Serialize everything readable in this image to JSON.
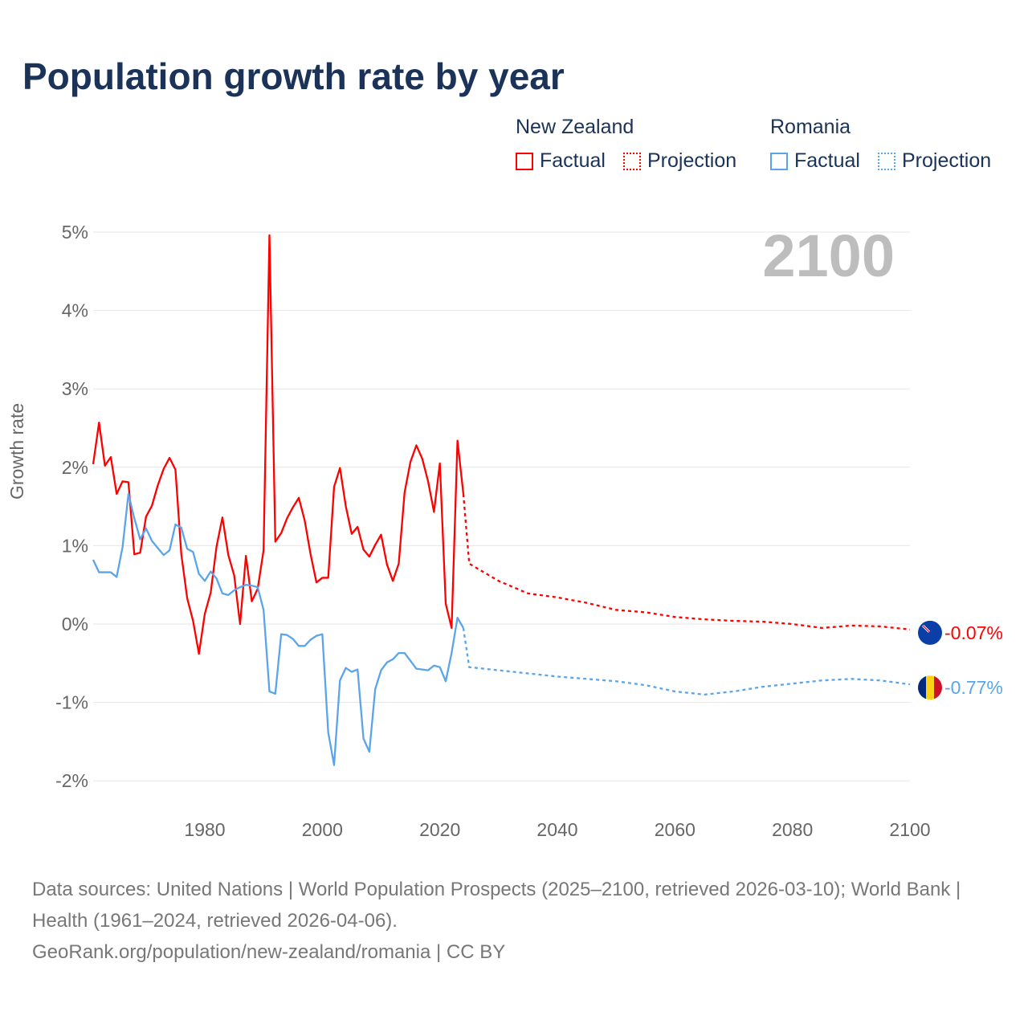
{
  "title": "Population growth rate by year",
  "legend": {
    "groups": [
      {
        "name": "New Zealand",
        "factual": "Factual",
        "projection": "Projection",
        "color": "#ff0000"
      },
      {
        "name": "Romania",
        "factual": "Factual",
        "projection": "Projection",
        "color": "#5aa5ea"
      }
    ]
  },
  "current_year": "2100",
  "footer": {
    "sources": "Data sources: United Nations | World Population Prospects (2025–2100, retrieved 2026-03-10); World Bank | Health (1961–2024, retrieved 2026-04-06).",
    "link": "GeoRank.org/population/new-zealand/romania | CC BY"
  },
  "chart_data": {
    "type": "line",
    "title": "Population growth rate by year",
    "xlabel": "",
    "ylabel": "Growth rate",
    "xlim": [
      1961,
      2100
    ],
    "ylim": [
      -2.3,
      5.2
    ],
    "x_ticks": [
      1980,
      2000,
      2020,
      2040,
      2060,
      2080,
      2100
    ],
    "y_ticks": [
      -2,
      -1,
      0,
      1,
      2,
      3,
      4,
      5
    ],
    "y_tick_labels": [
      "-2%",
      "-1%",
      "0%",
      "1%",
      "2%",
      "3%",
      "4%",
      "5%"
    ],
    "grid": true,
    "legend_position": "top-right",
    "series": [
      {
        "name": "New Zealand",
        "color": "#ff0000",
        "end_label": "-0.07%",
        "flag": "new-zealand",
        "factual": {
          "x_start": 1961,
          "values": [
            2.04,
            2.57,
            2.02,
            2.13,
            1.66,
            1.82,
            1.81,
            0.89,
            0.91,
            1.37,
            1.51,
            1.77,
            1.98,
            2.12,
            1.97,
            0.89,
            0.33,
            0.04,
            -0.38,
            0.13,
            0.4,
            0.99,
            1.36,
            0.88,
            0.62,
            0.0,
            0.87,
            0.29,
            0.45,
            0.94,
            4.96,
            1.05,
            1.16,
            1.35,
            1.49,
            1.61,
            1.32,
            0.89,
            0.53,
            0.59,
            0.59,
            1.75,
            1.99,
            1.5,
            1.15,
            1.24,
            0.95,
            0.86,
            1.01,
            1.14,
            0.76,
            0.55,
            0.77,
            1.68,
            2.07,
            2.28,
            2.11,
            1.82,
            1.43,
            2.05,
            0.26,
            -0.05,
            2.34,
            1.66
          ]
        },
        "projection": {
          "x": [
            2024,
            2025,
            2030,
            2035,
            2040,
            2045,
            2050,
            2055,
            2060,
            2065,
            2070,
            2075,
            2080,
            2085,
            2090,
            2095,
            2100
          ],
          "values": [
            1.66,
            0.77,
            0.55,
            0.39,
            0.34,
            0.27,
            0.18,
            0.15,
            0.09,
            0.06,
            0.04,
            0.03,
            0.0,
            -0.05,
            -0.02,
            -0.03,
            -0.07
          ]
        }
      },
      {
        "name": "Romania",
        "color": "#5aa5ea",
        "end_label": "-0.77%",
        "flag": "romania",
        "factual": {
          "x_start": 1961,
          "values": [
            0.82,
            0.66,
            0.66,
            0.66,
            0.6,
            0.98,
            1.66,
            1.35,
            1.08,
            1.22,
            1.06,
            0.97,
            0.88,
            0.94,
            1.27,
            1.23,
            0.96,
            0.92,
            0.64,
            0.55,
            0.67,
            0.58,
            0.39,
            0.37,
            0.43,
            0.47,
            0.5,
            0.49,
            0.47,
            0.18,
            -0.86,
            -0.89,
            -0.13,
            -0.14,
            -0.19,
            -0.28,
            -0.28,
            -0.2,
            -0.15,
            -0.13,
            -1.38,
            -1.8,
            -0.72,
            -0.56,
            -0.61,
            -0.58,
            -1.46,
            -1.63,
            -0.83,
            -0.59,
            -0.49,
            -0.45,
            -0.37,
            -0.37,
            -0.47,
            -0.57,
            -0.58,
            -0.59,
            -0.53,
            -0.55,
            -0.73,
            -0.37,
            0.08,
            -0.05
          ]
        },
        "projection": {
          "x": [
            2024,
            2025,
            2030,
            2035,
            2040,
            2045,
            2050,
            2055,
            2060,
            2065,
            2070,
            2075,
            2080,
            2085,
            2090,
            2095,
            2100
          ],
          "values": [
            -0.05,
            -0.55,
            -0.59,
            -0.63,
            -0.67,
            -0.7,
            -0.73,
            -0.78,
            -0.86,
            -0.9,
            -0.86,
            -0.8,
            -0.76,
            -0.72,
            -0.7,
            -0.72,
            -0.77
          ]
        }
      }
    ]
  }
}
